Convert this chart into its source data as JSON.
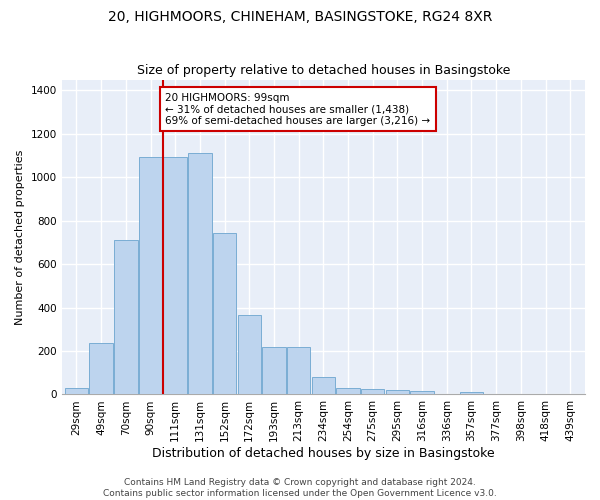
{
  "title": "20, HIGHMOORS, CHINEHAM, BASINGSTOKE, RG24 8XR",
  "subtitle": "Size of property relative to detached houses in Basingstoke",
  "xlabel": "Distribution of detached houses by size in Basingstoke",
  "ylabel": "Number of detached properties",
  "categories": [
    "29sqm",
    "49sqm",
    "70sqm",
    "90sqm",
    "111sqm",
    "131sqm",
    "152sqm",
    "172sqm",
    "193sqm",
    "213sqm",
    "234sqm",
    "254sqm",
    "275sqm",
    "295sqm",
    "316sqm",
    "336sqm",
    "357sqm",
    "377sqm",
    "398sqm",
    "418sqm",
    "439sqm"
  ],
  "values": [
    30,
    235,
    710,
    1095,
    1095,
    1110,
    745,
    365,
    220,
    220,
    80,
    30,
    25,
    20,
    15,
    0,
    10,
    0,
    0,
    0,
    0
  ],
  "bar_color": "#bdd4ee",
  "bar_edge_color": "#7aadd4",
  "background_color": "#e8eef8",
  "grid_color": "#ffffff",
  "annotation_text": "20 HIGHMOORS: 99sqm\n← 31% of detached houses are smaller (1,438)\n69% of semi-detached houses are larger (3,216) →",
  "annotation_box_color": "#ffffff",
  "annotation_box_edge": "#cc0000",
  "vline_color": "#cc0000",
  "vline_bar_index": 3,
  "ylim": [
    0,
    1450
  ],
  "footer_text": "Contains HM Land Registry data © Crown copyright and database right 2024.\nContains public sector information licensed under the Open Government Licence v3.0.",
  "title_fontsize": 10,
  "subtitle_fontsize": 9,
  "xlabel_fontsize": 9,
  "ylabel_fontsize": 8,
  "tick_fontsize": 7.5,
  "footer_fontsize": 6.5,
  "annotation_fontsize": 7.5
}
